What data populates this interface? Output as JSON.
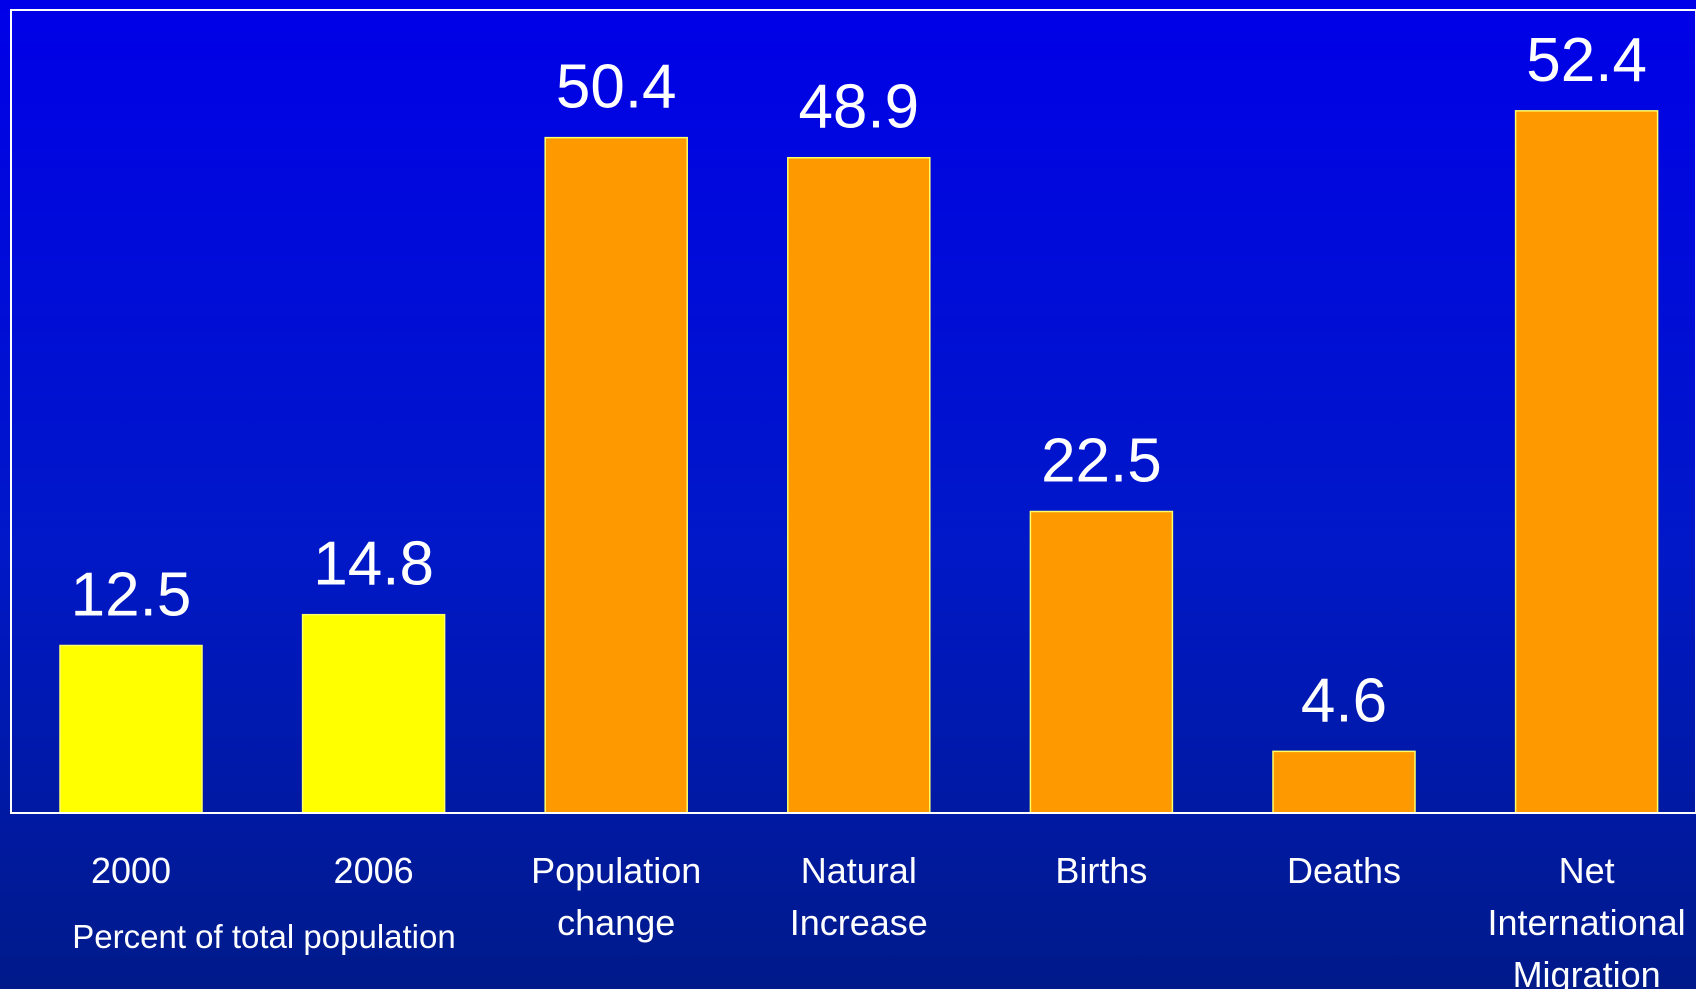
{
  "chart_data": {
    "type": "bar",
    "title": "",
    "xlabel": "",
    "ylabel": "",
    "ylim": [
      0,
      56
    ],
    "grid": false,
    "legend": "none",
    "categories": [
      "2000",
      "2006",
      "Population change",
      "Natural Increase",
      "Births",
      "Deaths",
      "Net International Migration"
    ],
    "category_lines": [
      [
        "2000"
      ],
      [
        "2006"
      ],
      [
        "Population",
        "change"
      ],
      [
        "Natural",
        "Increase"
      ],
      [
        "Births"
      ],
      [
        "Deaths"
      ],
      [
        "Net",
        "International",
        "Migration"
      ]
    ],
    "values": [
      12.5,
      14.8,
      50.4,
      48.9,
      22.5,
      4.6,
      52.4
    ],
    "value_labels": [
      "12.5",
      "14.8",
      "50.4",
      "48.9",
      "22.5",
      "4.6",
      "52.4"
    ],
    "bar_colors": [
      "#ffff00",
      "#ffff00",
      "#ff9900",
      "#ff9900",
      "#ff9900",
      "#ff9900",
      "#ff9900"
    ],
    "group_annotation": "Percent of total population"
  },
  "colors": {
    "background_top": "#0000e8",
    "background_bottom": "#001a8a",
    "axis": "#ffffff",
    "text": "#ffffff",
    "bar_outline": "#ffff66"
  }
}
